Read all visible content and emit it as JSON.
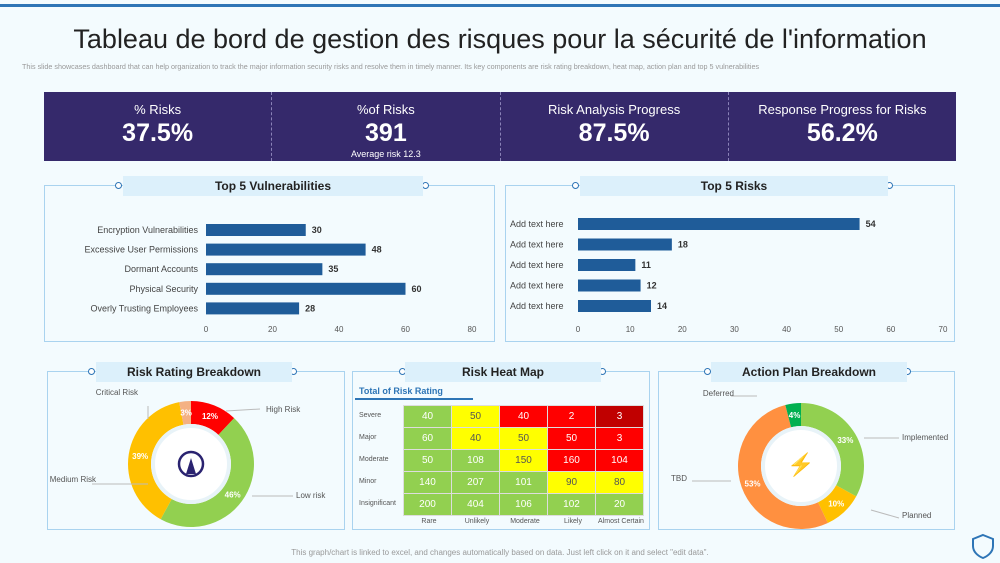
{
  "title": "Tableau de bord de gestion des risques pour la sécurité de l'information",
  "subtitle": "This slide showcases dashboard that can help organization to track the major information security risks and resolve them in timely manner. Its key components are risk rating breakdown, heat map, action plan and top 5 vulnerabilities",
  "kpis": [
    {
      "label": "% Risks",
      "value": "37.5%"
    },
    {
      "label": "%of Risks",
      "value": "391",
      "sub": "Average risk 12.3"
    },
    {
      "label": "Risk Analysis Progress",
      "value": "87.5%"
    },
    {
      "label": "Response Progress for Risks",
      "value": "56.2%"
    }
  ],
  "panels": {
    "vuln": "Top 5 Vulnerabilities",
    "risks": "Top 5 Risks",
    "rating": "Risk Rating Breakdown",
    "heat": "Risk Heat Map",
    "action": "Action Plan Breakdown"
  },
  "heatmap": {
    "subtitle": "Total of Risk Rating",
    "rows": [
      "Severe",
      "Major",
      "Moderate",
      "Minor",
      "Insignificant"
    ],
    "cols": [
      "Rare",
      "Unlikely",
      "Moderate",
      "Likely",
      "Almost Certain"
    ],
    "values": [
      [
        40,
        50,
        40,
        2,
        3
      ],
      [
        60,
        40,
        50,
        50,
        3
      ],
      [
        50,
        108,
        150,
        160,
        104
      ],
      [
        140,
        207,
        101,
        90,
        80
      ],
      [
        200,
        404,
        106,
        102,
        20
      ]
    ],
    "levels": [
      [
        "g",
        "y",
        "r",
        "r",
        "d"
      ],
      [
        "g",
        "y",
        "y",
        "r",
        "r"
      ],
      [
        "g",
        "g",
        "y",
        "r",
        "r"
      ],
      [
        "g",
        "g",
        "g",
        "y",
        "y"
      ],
      [
        "g",
        "g",
        "g",
        "g",
        "g"
      ]
    ],
    "colors": {
      "g": "#92d050",
      "y": "#ffff00",
      "r": "#ff0000",
      "d": "#c00000"
    }
  },
  "chart_data": [
    {
      "type": "bar",
      "orientation": "horizontal",
      "categories": [
        "Encryption Vulnerabilities",
        "Excessive User Permissions",
        "Dormant Accounts",
        "Physical Security",
        "Overly Trusting Employees"
      ],
      "values": [
        30,
        48,
        35,
        60,
        28
      ],
      "xlim": [
        0,
        80
      ],
      "ticks": [
        0,
        20,
        40,
        60,
        80
      ],
      "color": "#1f5c99"
    },
    {
      "type": "bar",
      "orientation": "horizontal",
      "categories": [
        "Add text here",
        "Add text here",
        "Add text here",
        "Add text here",
        "Add text here"
      ],
      "values": [
        54,
        18,
        11,
        12,
        14
      ],
      "xlim": [
        0,
        70
      ],
      "ticks": [
        0,
        10,
        20,
        30,
        40,
        50,
        60,
        70
      ],
      "color": "#1f5c99"
    },
    {
      "type": "pie",
      "donut": true,
      "labels": [
        "High Risk",
        "Low risk",
        "Medium Risk",
        "Critical Risk"
      ],
      "values": [
        12,
        46,
        39,
        3
      ],
      "colors": [
        "#ff0000",
        "#92d050",
        "#ffc000",
        "#f4b183"
      ]
    },
    {
      "type": "pie",
      "donut": true,
      "labels": [
        "Implemented",
        "Planned",
        "TBD",
        "Deferred"
      ],
      "values": [
        33,
        10,
        53,
        4
      ],
      "colors": [
        "#92d050",
        "#ffc000",
        "#ff9040",
        "#00b050"
      ]
    }
  ],
  "footer": "This graph/chart is linked to excel, and changes automatically based on data. Just left click on it and select \"edit data\"."
}
